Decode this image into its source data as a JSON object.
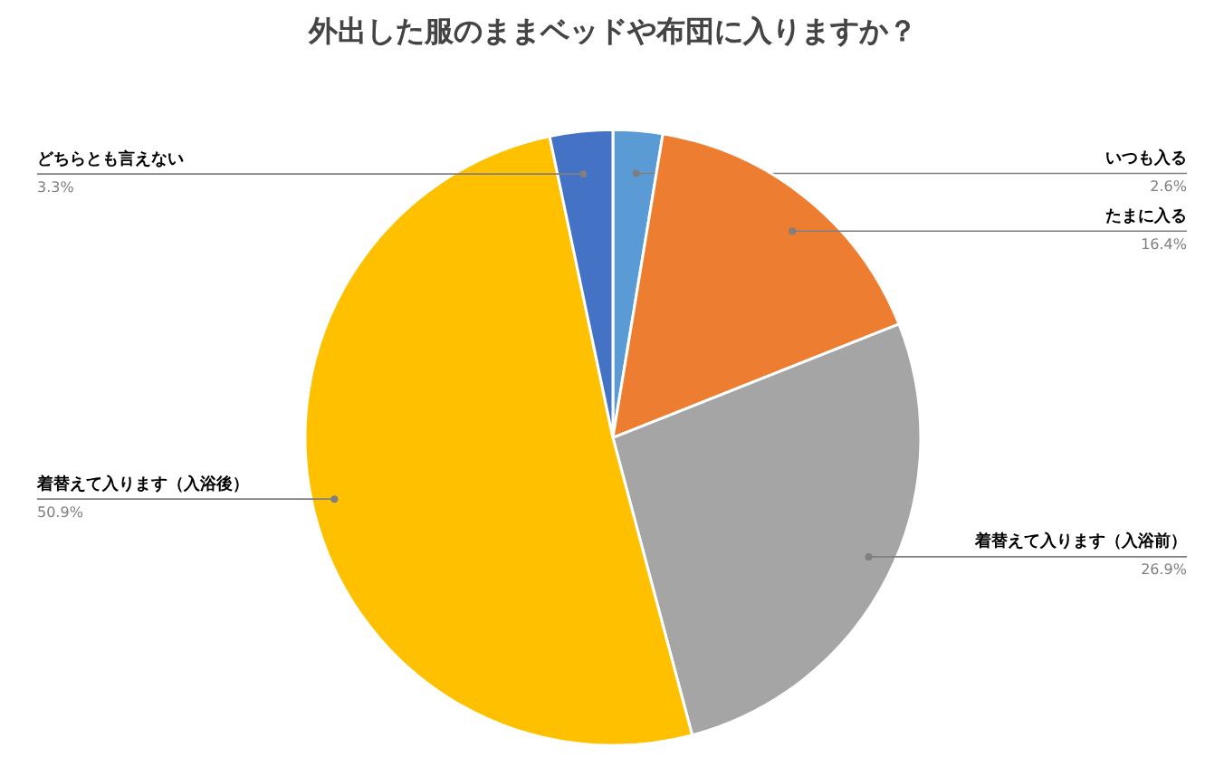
{
  "chart_data": {
    "type": "pie",
    "title": "外出した服のままベッドや布団に入りますか？",
    "categories": [
      "いつも入る",
      "たまに入る",
      "着替えて入ります（入浴前）",
      "着替えて入ります（入浴後）",
      "どちらとも言えない"
    ],
    "values": [
      2.6,
      16.4,
      26.9,
      50.9,
      3.3
    ],
    "value_labels": [
      "2.6%",
      "16.4%",
      "26.9%",
      "50.9%",
      "3.3%"
    ],
    "colors": [
      "#5b9bd5",
      "#ed7d31",
      "#a5a5a5",
      "#ffc000",
      "#4472c4"
    ]
  }
}
